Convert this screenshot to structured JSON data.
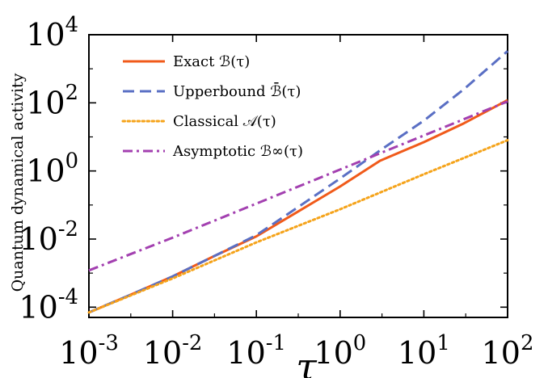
{
  "chart_data": {
    "type": "line",
    "title": "",
    "xlabel": "τ",
    "ylabel": "Quantum dynamical activity",
    "xscale": "log",
    "yscale": "log",
    "xlim": [
      0.001,
      100
    ],
    "ylim": [
      5e-05,
      10000
    ],
    "grid": false,
    "legend_position": "top-left",
    "x_ticks": [
      {
        "base": "10",
        "exp": "-3",
        "value": 0.001
      },
      {
        "base": "10",
        "exp": "-2",
        "value": 0.01
      },
      {
        "base": "10",
        "exp": "-1",
        "value": 0.1
      },
      {
        "base": "10",
        "exp": "0",
        "value": 1
      },
      {
        "base": "10",
        "exp": "1",
        "value": 10
      },
      {
        "base": "10",
        "exp": "2",
        "value": 100
      }
    ],
    "y_ticks": [
      {
        "base": "10",
        "exp": "-4",
        "value": 0.0001
      },
      {
        "base": "10",
        "exp": "-2",
        "value": 0.01
      },
      {
        "base": "10",
        "exp": "0",
        "value": 1
      },
      {
        "base": "10",
        "exp": "2",
        "value": 100
      },
      {
        "base": "10",
        "exp": "4",
        "value": 10000
      }
    ],
    "series": [
      {
        "name": "Exact ℬ(τ)",
        "color": "#f05a1a",
        "style": "solid",
        "x": [
          0.001,
          0.003,
          0.01,
          0.03,
          0.1,
          0.3,
          1,
          3,
          10,
          30,
          100
        ],
        "y": [
          7e-05,
          0.00022,
          0.0008,
          0.003,
          0.012,
          0.06,
          0.35,
          2,
          7,
          25,
          120
        ]
      },
      {
        "name": "Upperbound ℬ̄(τ)",
        "color": "#5a6fc4",
        "style": "dashed",
        "x": [
          0.001,
          0.003,
          0.01,
          0.03,
          0.1,
          0.3,
          1,
          3,
          10,
          30,
          100
        ],
        "y": [
          7e-05,
          0.00022,
          0.0008,
          0.003,
          0.013,
          0.08,
          0.6,
          4,
          30,
          250,
          3300
        ]
      },
      {
        "name": "Classical 𝒜(τ)",
        "color": "#f5a31a",
        "style": "dotted",
        "x": [
          0.001,
          0.01,
          0.1,
          1,
          10,
          100
        ],
        "y": [
          7e-05,
          0.0007,
          0.008,
          0.075,
          0.8,
          8
        ]
      },
      {
        "name": "Asymptotic ℬ∞(τ)",
        "color": "#a340b0",
        "style": "dashdot",
        "x": [
          0.001,
          0.01,
          0.1,
          1,
          10,
          100
        ],
        "y": [
          0.0012,
          0.011,
          0.11,
          1.1,
          11,
          110
        ]
      }
    ]
  }
}
